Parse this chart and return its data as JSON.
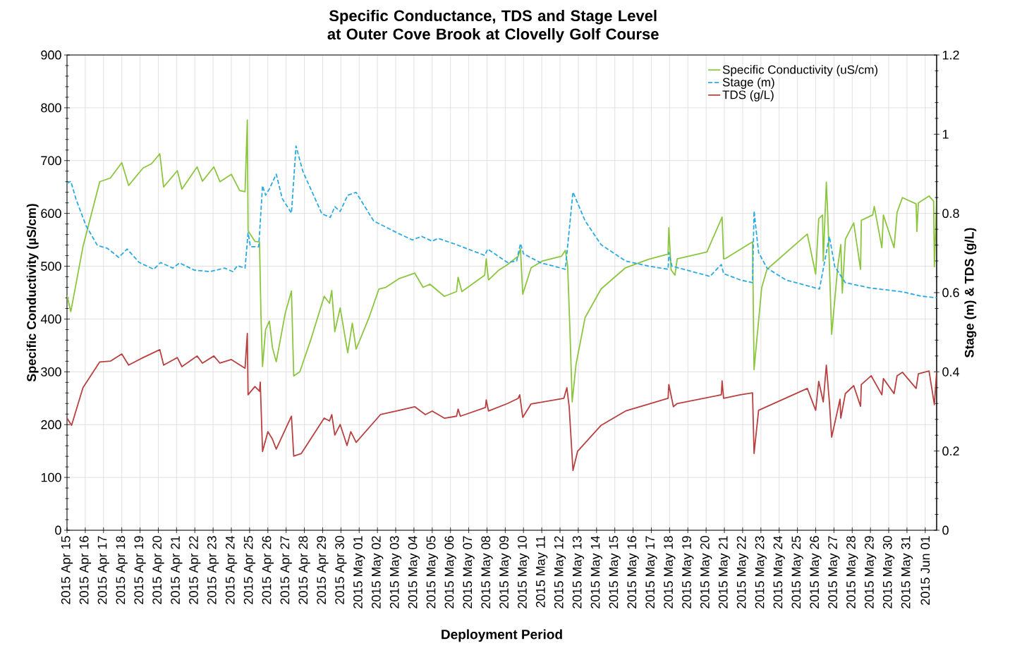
{
  "chart_data": {
    "type": "line",
    "title": "Specific Conductance, TDS and Stage Level at Outer Cove Brook at Clovelly Golf Course",
    "xlabel": "Deployment Period",
    "ylabel": "Specific Conductivity (µS/cm)",
    "y2label": "Stage (m) & TDS (g/L)",
    "xlim": [
      "2015-04-15",
      "2015-06-01T15:00"
    ],
    "xticks": [
      {
        "value": "2015-04-15",
        "label": "2015 Apr 15"
      },
      {
        "value": "2015-04-16",
        "label": "2015 Apr 16"
      },
      {
        "value": "2015-04-17",
        "label": "2015 Apr 17"
      },
      {
        "value": "2015-04-18",
        "label": "2015 Apr 18"
      },
      {
        "value": "2015-04-19",
        "label": "2015 Apr 19"
      },
      {
        "value": "2015-04-20",
        "label": "2015 Apr 20"
      },
      {
        "value": "2015-04-21",
        "label": "2015 Apr 21"
      },
      {
        "value": "2015-04-22",
        "label": "2015 Apr 22"
      },
      {
        "value": "2015-04-23",
        "label": "2015 Apr 23"
      },
      {
        "value": "2015-04-24",
        "label": "2015 Apr 24"
      },
      {
        "value": "2015-04-25",
        "label": "2015 Apr 25"
      },
      {
        "value": "2015-04-26",
        "label": "2015 Apr 26"
      },
      {
        "value": "2015-04-27",
        "label": "2015 Apr 27"
      },
      {
        "value": "2015-04-28",
        "label": "2015 Apr 28"
      },
      {
        "value": "2015-04-29",
        "label": "2015 Apr 29"
      },
      {
        "value": "2015-04-30",
        "label": "2015 Apr 30"
      },
      {
        "value": "2015-05-01",
        "label": "2015 May 01"
      },
      {
        "value": "2015-05-02",
        "label": "2015 May 02"
      },
      {
        "value": "2015-05-03",
        "label": "2015 May 03"
      },
      {
        "value": "2015-05-04",
        "label": "2015 May 04"
      },
      {
        "value": "2015-05-05",
        "label": "2015 May 05"
      },
      {
        "value": "2015-05-06",
        "label": "2015 May 06"
      },
      {
        "value": "2015-05-07",
        "label": "2015 May 07"
      },
      {
        "value": "2015-05-08",
        "label": "2015 May 08"
      },
      {
        "value": "2015-05-09",
        "label": "2015 May 09"
      },
      {
        "value": "2015-05-10",
        "label": "2015 May 10"
      },
      {
        "value": "2015-05-11",
        "label": "2015 May 11"
      },
      {
        "value": "2015-05-12",
        "label": "2015 May 12"
      },
      {
        "value": "2015-05-13",
        "label": "2015 May 13"
      },
      {
        "value": "2015-05-14",
        "label": "2015 May 14"
      },
      {
        "value": "2015-05-15",
        "label": "2015 May 15"
      },
      {
        "value": "2015-05-16",
        "label": "2015 May 16"
      },
      {
        "value": "2015-05-17",
        "label": "2015 May 17"
      },
      {
        "value": "2015-05-18",
        "label": "2015 May 18"
      },
      {
        "value": "2015-05-19",
        "label": "2015 May 19"
      },
      {
        "value": "2015-05-20",
        "label": "2015 May 20"
      },
      {
        "value": "2015-05-21",
        "label": "2015 May 21"
      },
      {
        "value": "2015-05-22",
        "label": "2015 May 22"
      },
      {
        "value": "2015-05-23",
        "label": "2015 May 23"
      },
      {
        "value": "2015-05-24",
        "label": "2015 May 24"
      },
      {
        "value": "2015-05-25",
        "label": "2015 May 25"
      },
      {
        "value": "2015-05-26",
        "label": "2015 May 26"
      },
      {
        "value": "2015-05-27",
        "label": "2015 May 27"
      },
      {
        "value": "2015-05-28",
        "label": "2015 May 28"
      },
      {
        "value": "2015-05-29",
        "label": "2015 May 29"
      },
      {
        "value": "2015-05-30",
        "label": "2015 May 30"
      },
      {
        "value": "2015-05-31",
        "label": "2015 May 31"
      },
      {
        "value": "2015-06-01",
        "label": "2015 Jun 01"
      }
    ],
    "ylim": [
      0,
      900
    ],
    "yticks": [
      0,
      100,
      200,
      300,
      400,
      500,
      600,
      700,
      800,
      900
    ],
    "y2lim": [
      0,
      1.2
    ],
    "y2ticks": [
      0,
      0.2,
      0.4,
      0.6,
      0.8,
      1,
      1.2
    ],
    "grid": true,
    "legend": "top right",
    "marker": "none",
    "series": [
      {
        "name": "Specific Conductivity (uS/cm)",
        "color": "#8cc63f",
        "line_style": "solid",
        "x": [
          "2015-04-15T00:00",
          "2015-04-15T05:00",
          "2015-04-15T21:00",
          "2015-04-16T19:00",
          "2015-04-17T09:00",
          "2015-04-18T00:00",
          "2015-04-18T09:00",
          "2015-04-19T04:00",
          "2015-04-19T15:00",
          "2015-04-20T02:00",
          "2015-04-20T07:00",
          "2015-04-21T01:00",
          "2015-04-21T07:00",
          "2015-04-22T03:00",
          "2015-04-22T10:00",
          "2015-04-23T01:00",
          "2015-04-23T09:00",
          "2015-04-24T00:00",
          "2015-04-24T11:00",
          "2015-04-24T18:00",
          "2015-04-24T21:00",
          "2015-04-24T22:00",
          "2015-04-25T07:00",
          "2015-04-25T13:00",
          "2015-04-25T15:00",
          "2015-04-25T17:00",
          "2015-04-25T21:00",
          "2015-04-26T02:00",
          "2015-04-26T06:00",
          "2015-04-26T11:00",
          "2015-04-26T23:00",
          "2015-04-27T07:00",
          "2015-04-27T10:00",
          "2015-04-27T18:00",
          "2015-04-28T08:00",
          "2015-04-29T02:00",
          "2015-04-29T09:00",
          "2015-04-29T12:00",
          "2015-04-29T16:00",
          "2015-04-29T23:00",
          "2015-04-30T09:00",
          "2015-04-30T15:00",
          "2015-04-30T20:00",
          "2015-05-01T13:00",
          "2015-05-02T02:00",
          "2015-05-02T11:00",
          "2015-05-03T05:00",
          "2015-05-04T01:00",
          "2015-05-04T12:00",
          "2015-05-04T21:00",
          "2015-05-05T16:00",
          "2015-05-06T08:00",
          "2015-05-06T10:00",
          "2015-05-06T15:00",
          "2015-05-07T21:00",
          "2015-05-07T23:00",
          "2015-05-08T02:00",
          "2015-05-08T15:00",
          "2015-05-09T03:00",
          "2015-05-09T17:00",
          "2015-05-09T20:00",
          "2015-05-09T23:00",
          "2015-05-10T10:00",
          "2015-05-11T01:00",
          "2015-05-12T02:00",
          "2015-05-12T07:00",
          "2015-05-12T10:00",
          "2015-05-12T13:00",
          "2015-05-12T16:00",
          "2015-05-12T21:00",
          "2015-05-13T09:00",
          "2015-05-14T06:00",
          "2015-05-15T14:00",
          "2015-05-16T20:00",
          "2015-05-17T22:00",
          "2015-05-17T23:00",
          "2015-05-18T02:00",
          "2015-05-18T07:00",
          "2015-05-18T10:00",
          "2015-05-20T01:00",
          "2015-05-20T21:00",
          "2015-05-20T23:00",
          "2015-05-21T02:00",
          "2015-05-22T13:00",
          "2015-05-22T15:00",
          "2015-05-22T19:00",
          "2015-05-23T01:00",
          "2015-05-23T08:00",
          "2015-05-25T13:00",
          "2015-05-26T00:00",
          "2015-05-26T04:00",
          "2015-05-26T09:00",
          "2015-05-26T10:00",
          "2015-05-26T14:00",
          "2015-05-26T16:00",
          "2015-05-26T21:00",
          "2015-05-27T05:00",
          "2015-05-27T09:00",
          "2015-05-27T11:00",
          "2015-05-27T15:00",
          "2015-05-28T02:00",
          "2015-05-28T11:00",
          "2015-05-28T12:00",
          "2015-05-29T03:00",
          "2015-05-29T05:00",
          "2015-05-29T15:00",
          "2015-05-29T17:00",
          "2015-05-30T07:00",
          "2015-05-30T11:00",
          "2015-05-30T18:00",
          "2015-05-31T12:00",
          "2015-05-31T13:00",
          "2015-05-31T15:00",
          "2015-06-01T05:00",
          "2015-06-01T11:00",
          "2015-06-01T12:00",
          "2015-06-01T15:00"
        ],
        "values": [
          445,
          414,
          537,
          660,
          667,
          696,
          653,
          686,
          694,
          713,
          650,
          681,
          646,
          688,
          661,
          688,
          660,
          674,
          643,
          641,
          777,
          567,
          547,
          546,
          403,
          310,
          380,
          396,
          346,
          319,
          412,
          453,
          292,
          300,
          359,
          443,
          430,
          454,
          376,
          421,
          336,
          392,
          343,
          403,
          457,
          460,
          477,
          487,
          460,
          466,
          443,
          452,
          479,
          452,
          483,
          514,
          474,
          492,
          503,
          519,
          533,
          447,
          497,
          510,
          519,
          530,
          501,
          380,
          243,
          314,
          403,
          457,
          497,
          513,
          523,
          573,
          493,
          483,
          514,
          527,
          593,
          514,
          515,
          546,
          304,
          366,
          459,
          494,
          561,
          485,
          590,
          597,
          510,
          659,
          593,
          371,
          499,
          541,
          449,
          551,
          582,
          494,
          587,
          597,
          613,
          535,
          597,
          535,
          602,
          630,
          618,
          566,
          620,
          633,
          623,
          499,
          628
        ]
      },
      {
        "name": "Stage (m)",
        "color": "#29abe2",
        "line_style": "dashed",
        "axis": "y2",
        "x": [
          "2015-04-15T00:00",
          "2015-04-15T05:00",
          "2015-04-15T12:00",
          "2015-04-16T01:00",
          "2015-04-16T16:00",
          "2015-04-17T05:00",
          "2015-04-17T20:00",
          "2015-04-18T07:00",
          "2015-04-18T23:00",
          "2015-04-19T18:00",
          "2015-04-20T03:00",
          "2015-04-20T19:00",
          "2015-04-21T04:00",
          "2015-04-21T23:00",
          "2015-04-22T20:00",
          "2015-04-23T15:00",
          "2015-04-24T02:00",
          "2015-04-24T08:00",
          "2015-04-24T18:00",
          "2015-04-24T22:00",
          "2015-04-25T01:00",
          "2015-04-25T12:00",
          "2015-04-25T17:00",
          "2015-04-25T21:00",
          "2015-04-26T02:00",
          "2015-04-26T11:00",
          "2015-04-26T19:00",
          "2015-04-27T07:00",
          "2015-04-27T13:00",
          "2015-04-27T22:00",
          "2015-04-28T23:00",
          "2015-04-29T10:00",
          "2015-04-29T16:00",
          "2015-04-29T23:00",
          "2015-04-30T09:00",
          "2015-04-30T20:00",
          "2015-05-01T19:00",
          "2015-05-03T05:00",
          "2015-05-03T22:00",
          "2015-05-04T10:00",
          "2015-05-05T00:00",
          "2015-05-05T08:00",
          "2015-05-06T08:00",
          "2015-05-07T21:00",
          "2015-05-08T01:00",
          "2015-05-09T03:00",
          "2015-05-09T15:00",
          "2015-05-09T20:00",
          "2015-05-10T00:00",
          "2015-05-10T23:00",
          "2015-05-12T07:00",
          "2015-05-12T17:00",
          "2015-05-13T09:00",
          "2015-05-14T06:00",
          "2015-05-15T14:00",
          "2015-05-16T20:00",
          "2015-05-17T22:00",
          "2015-05-17T23:00",
          "2015-05-18T03:00",
          "2015-05-20T05:00",
          "2015-05-20T20:00",
          "2015-05-20T23:00",
          "2015-05-21T21:00",
          "2015-05-22T13:00",
          "2015-05-22T15:00",
          "2015-05-22T21:00",
          "2015-05-23T08:00",
          "2015-05-24T09:00",
          "2015-05-26T05:00",
          "2015-05-26T18:00",
          "2015-05-27T01:00",
          "2015-05-27T15:00",
          "2015-05-28T23:00",
          "2015-05-30T18:00",
          "2015-05-31T19:00",
          "2015-06-01T15:00"
        ],
        "values": [
          0.876,
          0.881,
          0.835,
          0.769,
          0.719,
          0.712,
          0.689,
          0.71,
          0.676,
          0.659,
          0.676,
          0.662,
          0.675,
          0.657,
          0.653,
          0.662,
          0.653,
          0.668,
          0.662,
          0.751,
          0.716,
          0.716,
          0.87,
          0.846,
          0.862,
          0.899,
          0.837,
          0.801,
          0.97,
          0.906,
          0.799,
          0.79,
          0.817,
          0.805,
          0.846,
          0.853,
          0.781,
          0.748,
          0.733,
          0.742,
          0.73,
          0.737,
          0.721,
          0.694,
          0.71,
          0.676,
          0.68,
          0.724,
          0.698,
          0.675,
          0.659,
          0.854,
          0.781,
          0.721,
          0.68,
          0.667,
          0.659,
          0.701,
          0.667,
          0.641,
          0.671,
          0.648,
          0.632,
          0.625,
          0.806,
          0.701,
          0.662,
          0.632,
          0.609,
          0.742,
          0.666,
          0.625,
          0.612,
          0.602,
          0.591,
          0.587
        ]
      },
      {
        "name": "TDS (g/L)",
        "color": "#b94040",
        "line_style": "solid",
        "axis": "y2",
        "x": [
          "2015-04-15T00:00",
          "2015-04-15T06:00",
          "2015-04-15T21:00",
          "2015-04-16T19:00",
          "2015-04-17T09:00",
          "2015-04-18T00:00",
          "2015-04-18T09:00",
          "2015-04-19T04:00",
          "2015-04-20T02:00",
          "2015-04-20T07:00",
          "2015-04-21T01:00",
          "2015-04-21T07:00",
          "2015-04-22T03:00",
          "2015-04-22T10:00",
          "2015-04-23T01:00",
          "2015-04-23T09:00",
          "2015-04-24T00:00",
          "2015-04-24T18:00",
          "2015-04-24T21:00",
          "2015-04-24T22:00",
          "2015-04-25T07:00",
          "2015-04-25T13:00",
          "2015-04-25T14:00",
          "2015-04-25T17:00",
          "2015-04-26T00:00",
          "2015-04-26T06:00",
          "2015-04-26T11:00",
          "2015-04-27T07:00",
          "2015-04-27T10:00",
          "2015-04-27T20:00",
          "2015-04-29T02:00",
          "2015-04-29T09:00",
          "2015-04-29T12:00",
          "2015-04-29T16:00",
          "2015-04-29T23:00",
          "2015-04-30T08:00",
          "2015-04-30T13:00",
          "2015-04-30T20:00",
          "2015-05-02T04:00",
          "2015-05-03T05:00",
          "2015-05-04T01:00",
          "2015-05-04T15:00",
          "2015-05-05T00:00",
          "2015-05-05T16:00",
          "2015-05-06T08:00",
          "2015-05-06T10:00",
          "2015-05-06T13:00",
          "2015-05-07T22:00",
          "2015-05-07T23:00",
          "2015-05-08T02:00",
          "2015-05-09T03:00",
          "2015-05-09T17:00",
          "2015-05-09T19:00",
          "2015-05-09T23:00",
          "2015-05-10T10:00",
          "2015-05-12T05:00",
          "2015-05-12T09:00",
          "2015-05-12T12:00",
          "2015-05-12T17:00",
          "2015-05-12T23:00",
          "2015-05-14T06:00",
          "2015-05-15T14:00",
          "2015-05-17T22:00",
          "2015-05-17T23:00",
          "2015-05-18T05:00",
          "2015-05-18T10:00",
          "2015-05-20T20:00",
          "2015-05-20T21:00",
          "2015-05-20T23:00",
          "2015-05-21T21:00",
          "2015-05-22T13:00",
          "2015-05-22T15:00",
          "2015-05-22T21:00",
          "2015-05-25T13:00",
          "2015-05-26T00:00",
          "2015-05-26T04:00",
          "2015-05-26T10:00",
          "2015-05-26T14:00",
          "2015-05-26T18:00",
          "2015-05-26T21:00",
          "2015-05-27T08:00",
          "2015-05-27T09:00",
          "2015-05-27T15:00",
          "2015-05-28T02:00",
          "2015-05-28T11:00",
          "2015-05-28T12:00",
          "2015-05-29T01:00",
          "2015-05-29T15:00",
          "2015-05-29T17:00",
          "2015-05-30T07:00",
          "2015-05-30T11:00",
          "2015-05-30T18:00",
          "2015-05-31T12:00",
          "2015-05-31T15:00",
          "2015-06-01T05:00",
          "2015-06-01T12:00",
          "2015-06-01T15:00"
        ],
        "values": [
          0.283,
          0.265,
          0.36,
          0.425,
          0.427,
          0.445,
          0.417,
          0.436,
          0.456,
          0.417,
          0.436,
          0.413,
          0.44,
          0.422,
          0.44,
          0.422,
          0.431,
          0.409,
          0.497,
          0.342,
          0.363,
          0.351,
          0.374,
          0.199,
          0.249,
          0.23,
          0.205,
          0.288,
          0.187,
          0.194,
          0.283,
          0.276,
          0.292,
          0.24,
          0.267,
          0.214,
          0.249,
          0.222,
          0.292,
          0.303,
          0.312,
          0.292,
          0.301,
          0.283,
          0.288,
          0.306,
          0.288,
          0.31,
          0.329,
          0.301,
          0.32,
          0.333,
          0.342,
          0.285,
          0.319,
          0.333,
          0.36,
          0.312,
          0.151,
          0.199,
          0.265,
          0.301,
          0.333,
          0.368,
          0.312,
          0.32,
          0.342,
          0.377,
          0.333,
          0.342,
          0.347,
          0.194,
          0.303,
          0.358,
          0.303,
          0.376,
          0.324,
          0.417,
          0.324,
          0.235,
          0.331,
          0.283,
          0.345,
          0.365,
          0.313,
          0.368,
          0.39,
          0.342,
          0.383,
          0.345,
          0.39,
          0.399,
          0.358,
          0.395,
          0.402,
          0.317,
          0.401
        ]
      }
    ]
  }
}
